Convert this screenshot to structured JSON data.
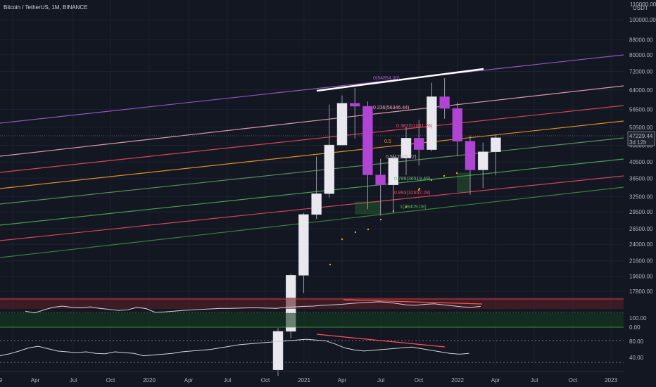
{
  "header": {
    "symbol_title": "Bitcoin / TetherUS, 1M, BINANCE"
  },
  "price_axis": {
    "currency": "USDT",
    "top_label": "110000.00",
    "labels": [
      "100000.00",
      "88000.00",
      "80000.00",
      "72000.00",
      "64000.00",
      "56500.00",
      "50500.00",
      "45000.00",
      "40500.00",
      "36500.00",
      "32500.00",
      "29500.00",
      "26500.00",
      "24000.00",
      "21600.00",
      "19600.00",
      "17800.00"
    ],
    "current_price": "47229.44",
    "countdown": "3d 12h"
  },
  "time_axis": {
    "labels": [
      "9",
      "Apr",
      "Jul",
      "Oct",
      "2020",
      "Apr",
      "Jul",
      "Oct",
      "2021",
      "Apr",
      "Jul",
      "Oct",
      "2022",
      "Apr",
      "Jul",
      "Oct",
      "2023"
    ]
  },
  "rsi_panel": {
    "labels": [
      "100.00",
      "0.00"
    ]
  },
  "oscillator_panel": {
    "labels": [
      "80.00",
      "40.00"
    ]
  },
  "fib_labels": [
    {
      "text": "0(64854.00)",
      "color": "#9c5ccf"
    },
    {
      "text": "0.236(56346.44)",
      "color": "#f0a8b8"
    },
    {
      "text": "0.382(51081.26)",
      "color": "#e84a5f"
    },
    {
      "text": "0.5",
      "color": "#f59a23"
    },
    {
      "text": "0.5(42575.72)",
      "color": "#b2b5be"
    },
    {
      "text": "0.786(36519.49)",
      "color": "#66bb6a"
    },
    {
      "text": "0.893(32652.28)",
      "color": "#e84a5f"
    },
    {
      "text": "1(29409.08)",
      "color": "#4caf50"
    }
  ],
  "colors": {
    "background": "#131722",
    "bull_candle": "#e8e8ee",
    "bear_candle": "#b144d4",
    "trendline": "#ffffff"
  },
  "chart_data": {
    "type": "candlestick",
    "title": "Bitcoin / TetherUS, 1M, BINANCE",
    "scale": "log",
    "candles": [
      {
        "month": "2020-10",
        "o": 10800,
        "h": 14100,
        "l": 10400,
        "c": 13800
      },
      {
        "month": "2020-11",
        "o": 13800,
        "h": 19900,
        "l": 13200,
        "c": 19700
      },
      {
        "month": "2020-12",
        "o": 19700,
        "h": 29300,
        "l": 17600,
        "c": 29000
      },
      {
        "month": "2021-01",
        "o": 29000,
        "h": 41900,
        "l": 28200,
        "c": 33100
      },
      {
        "month": "2021-02",
        "o": 33100,
        "h": 58300,
        "l": 32300,
        "c": 45100
      },
      {
        "month": "2021-03",
        "o": 45100,
        "h": 61800,
        "l": 45000,
        "c": 58800
      },
      {
        "month": "2021-04",
        "o": 58800,
        "h": 64854,
        "l": 47000,
        "c": 57700
      },
      {
        "month": "2021-05",
        "o": 57700,
        "h": 59500,
        "l": 30000,
        "c": 37300
      },
      {
        "month": "2021-06",
        "o": 37300,
        "h": 41300,
        "l": 28800,
        "c": 35000
      },
      {
        "month": "2021-07",
        "o": 35000,
        "h": 42400,
        "l": 29300,
        "c": 41500
      },
      {
        "month": "2021-08",
        "o": 41500,
        "h": 50500,
        "l": 37300,
        "c": 47100
      },
      {
        "month": "2021-09",
        "o": 47100,
        "h": 52900,
        "l": 39600,
        "c": 43800
      },
      {
        "month": "2021-10",
        "o": 43800,
        "h": 67000,
        "l": 43300,
        "c": 61300
      },
      {
        "month": "2021-11",
        "o": 61300,
        "h": 69000,
        "l": 53300,
        "c": 56900
      },
      {
        "month": "2021-12",
        "o": 56900,
        "h": 59100,
        "l": 42000,
        "c": 46200
      },
      {
        "month": "2022-01",
        "o": 46200,
        "h": 47900,
        "l": 32900,
        "c": 38500
      },
      {
        "month": "2022-02",
        "o": 38500,
        "h": 45800,
        "l": 34300,
        "c": 43200
      },
      {
        "month": "2022-03",
        "o": 43200,
        "h": 48200,
        "l": 37200,
        "c": 47229.44
      }
    ],
    "fib_levels": [
      {
        "ratio": 0,
        "price": 64854.0
      },
      {
        "ratio": 0.236,
        "price": 56346.44
      },
      {
        "ratio": 0.382,
        "price": 51081.26
      },
      {
        "ratio": 0.5,
        "price": 42575.72
      },
      {
        "ratio": 0.786,
        "price": 36519.49
      },
      {
        "ratio": 0.893,
        "price": 32652.28
      },
      {
        "ratio": 1,
        "price": 29409.08
      }
    ],
    "rsi": [
      55,
      48,
      60,
      70,
      75,
      70,
      68,
      72,
      66,
      62,
      58,
      60,
      70,
      65,
      50,
      52,
      55,
      58,
      60,
      62,
      64,
      66,
      66,
      67,
      68,
      68,
      67,
      66,
      70,
      72,
      74,
      75,
      78,
      80,
      82,
      85,
      88,
      90,
      92,
      90,
      85,
      80,
      78,
      82,
      84,
      80,
      76,
      72,
      70,
      74
    ],
    "oscillator": [
      40,
      45,
      52,
      60,
      64,
      58,
      52,
      50,
      48,
      50,
      46,
      45,
      50,
      48,
      46,
      40,
      42,
      44,
      46,
      50,
      52,
      54,
      56,
      60,
      64,
      68,
      70,
      72,
      74,
      76,
      78,
      80,
      82,
      80,
      78,
      70,
      60,
      55,
      52,
      54,
      56,
      58,
      60,
      62,
      58,
      54,
      50,
      46,
      44,
      46
    ]
  }
}
